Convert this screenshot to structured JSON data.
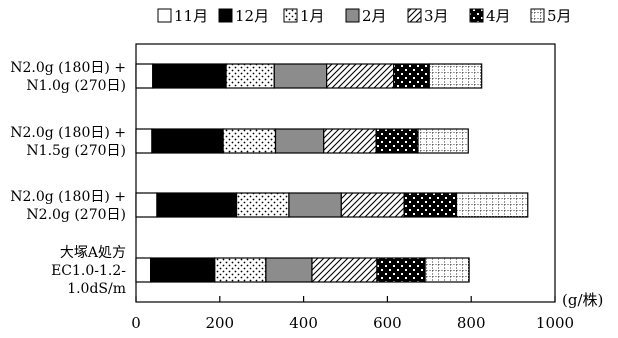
{
  "chart_data": {
    "type": "bar",
    "orientation": "horizontal",
    "stacked": true,
    "categories": [
      [
        "N2.0g (180日) +",
        "N1.0g (270日)"
      ],
      [
        "N2.0g (180日) +",
        "N1.5g (270日)"
      ],
      [
        "N2.0g (180日) +",
        "N2.0g (270日)"
      ],
      [
        "大塚A処方",
        "EC1.0-1.2-",
        "1.0dS/m"
      ]
    ],
    "series": [
      {
        "name": "11月",
        "pattern": "white",
        "values": [
          40,
          38,
          50,
          35
        ]
      },
      {
        "name": "12月",
        "pattern": "black",
        "values": [
          175,
          170,
          190,
          153
        ]
      },
      {
        "name": "1月",
        "pattern": "dots",
        "values": [
          115,
          125,
          125,
          122
        ]
      },
      {
        "name": "2月",
        "pattern": "gray",
        "values": [
          125,
          115,
          125,
          110
        ]
      },
      {
        "name": "3月",
        "pattern": "diagonal",
        "values": [
          160,
          125,
          150,
          155
        ]
      },
      {
        "name": "4月",
        "pattern": "checker",
        "values": [
          85,
          100,
          125,
          115
        ]
      },
      {
        "name": "5月",
        "pattern": "grid",
        "values": [
          125,
          120,
          170,
          105
        ]
      }
    ],
    "xlabel": "(g/株)",
    "xlim": [
      0,
      1000
    ],
    "xticks": [
      "0",
      "200",
      "400",
      "600",
      "800",
      "1000"
    ],
    "grid": false,
    "legend_position": "top"
  }
}
